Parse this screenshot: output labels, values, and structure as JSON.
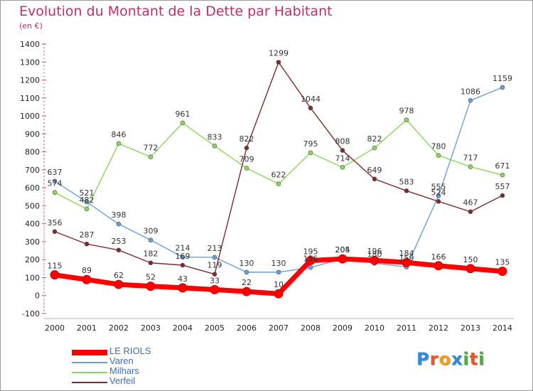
{
  "header": {
    "title": "Evolution du Montant de la Dette par Habitant",
    "unit": "(en €)"
  },
  "brand": {
    "letters": [
      {
        "ch": "P",
        "color": "#2e8bd6"
      },
      {
        "ch": "r",
        "color": "#e05a2a"
      },
      {
        "ch": "o",
        "color": "#f0a020"
      },
      {
        "ch": "x",
        "color": "#2e8bd6"
      },
      {
        "ch": "i",
        "color": "#4cae3c"
      },
      {
        "ch": "t",
        "color": "#e05a2a"
      },
      {
        "ch": "i",
        "color": "#4cae3c"
      }
    ]
  },
  "chart_data": {
    "type": "line",
    "title": "Evolution du Montant de la Dette par Habitant",
    "ylabel": "(en €)",
    "xlabel": "",
    "ylim": [
      -100,
      1400
    ],
    "yticks": [
      -100,
      0,
      100,
      200,
      300,
      400,
      500,
      600,
      700,
      800,
      900,
      1000,
      1100,
      1200,
      1300,
      1400
    ],
    "grid": false,
    "legend_position": "bottom-left",
    "x": [
      "2000",
      "2001",
      "2002",
      "2003",
      "2004",
      "2005",
      "2006",
      "2007",
      "2008",
      "2009",
      "2010",
      "2011",
      "2012",
      "2013",
      "2014"
    ],
    "series": [
      {
        "name": "LE RIOLS",
        "color": "#ff0000",
        "emphasis": true,
        "values": [
          115,
          89,
          62,
          52,
          43,
          33,
          22,
          10,
          195,
          204,
          196,
          184,
          166,
          150,
          135
        ]
      },
      {
        "name": "Varen",
        "color": "#6a9fd4",
        "emphasis": false,
        "values": [
          637,
          521,
          398,
          309,
          214,
          213,
          130,
          130,
          156,
          205,
          180,
          159,
          555,
          1086,
          1159
        ]
      },
      {
        "name": "Milhars",
        "color": "#8cd45f",
        "emphasis": false,
        "values": [
          574,
          482,
          846,
          772,
          961,
          833,
          709,
          622,
          795,
          714,
          822,
          978,
          780,
          717,
          671
        ]
      },
      {
        "name": "Verfeil",
        "color": "#7b2c2c",
        "emphasis": false,
        "values": [
          356,
          287,
          253,
          182,
          169,
          119,
          822,
          1299,
          1044,
          808,
          649,
          583,
          524,
          467,
          557
        ]
      }
    ]
  }
}
